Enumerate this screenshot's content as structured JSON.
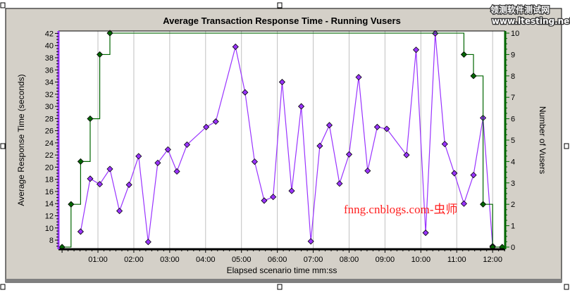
{
  "chart_data": {
    "type": "line",
    "title": "Average Transaction Response Time - Running Vusers",
    "xlabel": "Elapsed scenario time mm:ss",
    "ylabel": "Average Response Time (seconds)",
    "y2label": "Number of Vusers",
    "x_ticks": [
      "01:00",
      "02:00",
      "03:00",
      "04:00",
      "05:00",
      "06:00",
      "07:00",
      "08:00",
      "09:00",
      "10:00",
      "11:00",
      "12:00"
    ],
    "y_ticks": [
      8,
      10,
      12,
      14,
      16,
      18,
      20,
      22,
      24,
      26,
      28,
      30,
      32,
      34,
      36,
      38,
      40,
      42
    ],
    "y2_ticks": [
      0,
      1,
      2,
      3,
      4,
      5,
      6,
      7,
      8,
      9,
      10
    ],
    "xlim_seconds": [
      -6,
      741
    ],
    "ylim": [
      6.5,
      42.4
    ],
    "y2lim": [
      -0.1,
      10.1
    ],
    "grid": "vertical",
    "series": [
      {
        "axis": "left",
        "color": "#9933ff",
        "x_seconds": [
          31,
          47,
          63,
          80,
          96,
          112,
          128,
          144,
          160,
          177,
          192,
          209,
          241,
          257,
          290,
          306,
          322,
          338,
          353,
          368,
          384,
          400,
          416,
          431,
          447,
          464,
          480,
          496,
          511,
          527,
          543,
          576,
          592,
          608,
          624,
          640,
          656,
          672,
          688,
          704,
          720
        ],
        "values": [
          9.4,
          18.1,
          17.2,
          19.7,
          12.8,
          17.1,
          21.8,
          7.7,
          20.7,
          22.9,
          19.3,
          23.7,
          26.6,
          27.5,
          39.8,
          32.3,
          20.9,
          14.5,
          15.1,
          34.0,
          16.1,
          30.0,
          7.8,
          23.5,
          26.9,
          17.3,
          22.1,
          34.8,
          19.4,
          26.6,
          26.3,
          22.0,
          39.3,
          9.2,
          42.0,
          23.8,
          19.0,
          14.0,
          18.7,
          28.1,
          7.0
        ]
      },
      {
        "axis": "right",
        "color": "#006600",
        "step": true,
        "x_seconds": [
          0,
          15,
          31,
          47,
          63,
          80,
          672,
          688,
          704,
          720,
          736
        ],
        "values": [
          0,
          2,
          4,
          6,
          9,
          10,
          9,
          8,
          2,
          0,
          0
        ]
      }
    ]
  },
  "watermark": "fnng.cnblogs.com-虫师",
  "logo": {
    "line1": "领测软件测试网",
    "line2": "www.ltesting.net"
  }
}
